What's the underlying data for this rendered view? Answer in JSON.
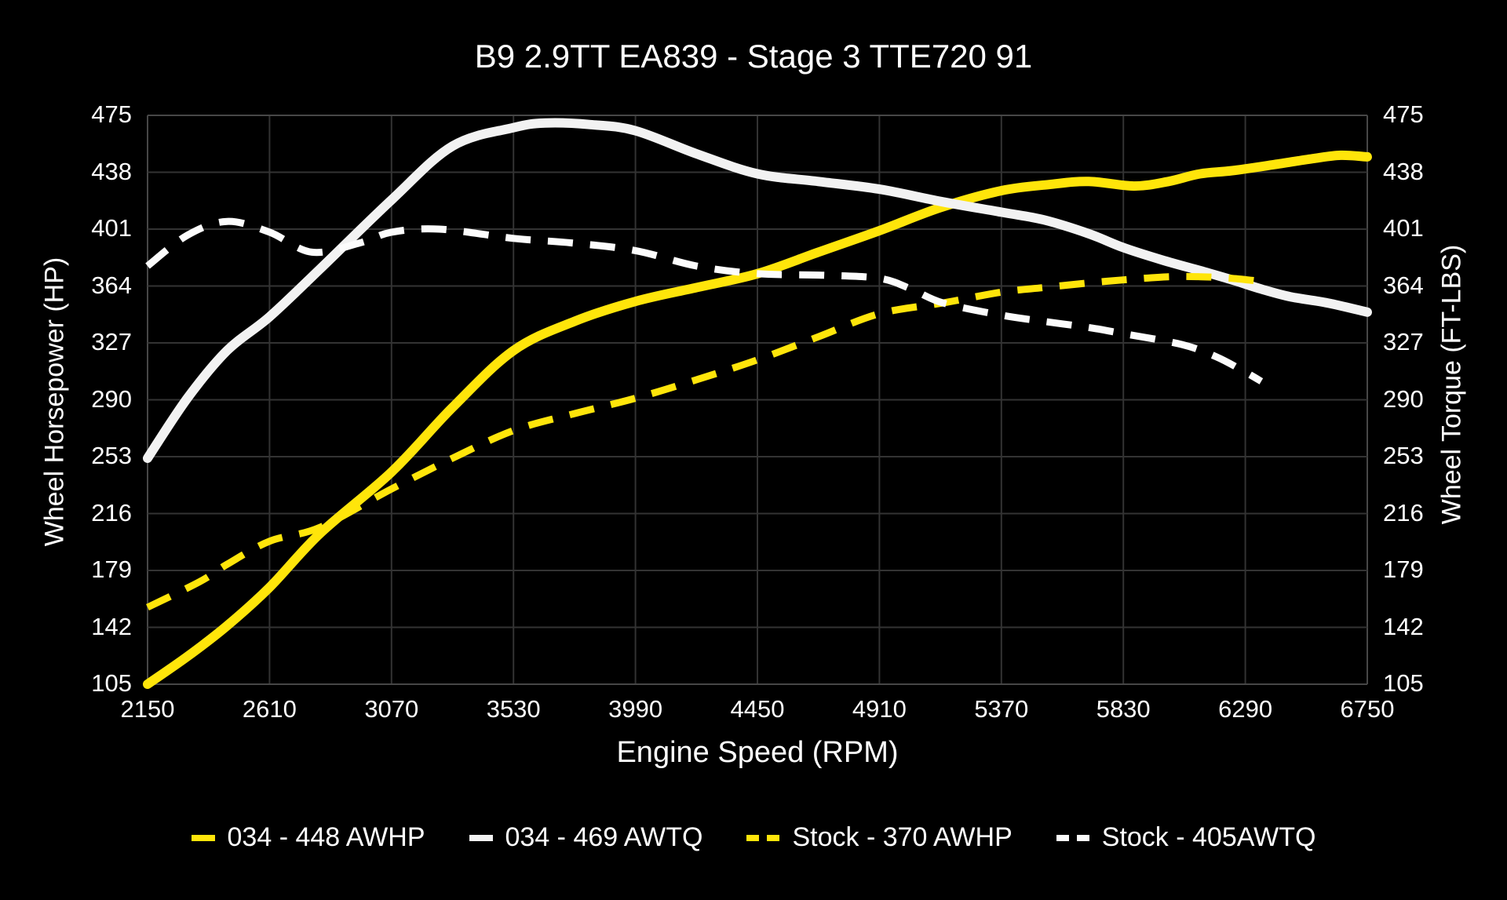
{
  "chart_data": {
    "type": "line",
    "title": "B9 2.9TT EA839 - Stage 3 TTE720 91",
    "xlabel": "Engine Speed (RPM)",
    "ylabel_left": "Wheel Horsepower (HP)",
    "ylabel_right": "Wheel Torque (FT-LBS)",
    "xlim": [
      2150,
      6750
    ],
    "ylim": [
      105,
      475
    ],
    "x_ticks": [
      2150,
      2610,
      3070,
      3530,
      3990,
      4450,
      4910,
      5370,
      5830,
      6290,
      6750
    ],
    "y_ticks": [
      105,
      142,
      179,
      216,
      253,
      290,
      327,
      364,
      401,
      438,
      475
    ],
    "grid": true,
    "legend_position": "bottom",
    "colors": {
      "background": "#000000",
      "gridline": "#333333",
      "plot_border": "#474747",
      "text": "#ffffff",
      "accent_yellow": "#ffe50a",
      "accent_white": "#f2f2f2"
    },
    "series": [
      {
        "name": "034 - 448 AWHP",
        "color": "#ffe50a",
        "style": "solid",
        "width": 12,
        "points": [
          [
            2150,
            105
          ],
          [
            2300,
            123
          ],
          [
            2450,
            143
          ],
          [
            2610,
            168
          ],
          [
            2800,
            203
          ],
          [
            3070,
            243
          ],
          [
            3300,
            285
          ],
          [
            3530,
            322
          ],
          [
            3760,
            341
          ],
          [
            3990,
            354
          ],
          [
            4220,
            363
          ],
          [
            4450,
            372
          ],
          [
            4680,
            386
          ],
          [
            4910,
            400
          ],
          [
            5140,
            415
          ],
          [
            5370,
            426
          ],
          [
            5550,
            430
          ],
          [
            5700,
            432
          ],
          [
            5870,
            429
          ],
          [
            6000,
            432
          ],
          [
            6120,
            437
          ],
          [
            6240,
            439
          ],
          [
            6400,
            443
          ],
          [
            6550,
            447
          ],
          [
            6650,
            449
          ],
          [
            6750,
            448
          ]
        ]
      },
      {
        "name": "034 - 469 AWTQ",
        "color": "#f2f2f2",
        "style": "solid",
        "width": 12,
        "points": [
          [
            2150,
            252
          ],
          [
            2300,
            291
          ],
          [
            2450,
            322
          ],
          [
            2610,
            344
          ],
          [
            2800,
            375
          ],
          [
            3070,
            420
          ],
          [
            3300,
            455
          ],
          [
            3530,
            467
          ],
          [
            3650,
            470
          ],
          [
            3820,
            469
          ],
          [
            3990,
            465
          ],
          [
            4220,
            450
          ],
          [
            4450,
            437
          ],
          [
            4680,
            432
          ],
          [
            4910,
            427
          ],
          [
            5140,
            419
          ],
          [
            5370,
            412
          ],
          [
            5530,
            407
          ],
          [
            5700,
            398
          ],
          [
            5830,
            389
          ],
          [
            5975,
            381
          ],
          [
            6120,
            374
          ],
          [
            6240,
            368
          ],
          [
            6350,
            362
          ],
          [
            6460,
            357
          ],
          [
            6600,
            353
          ],
          [
            6750,
            347
          ]
        ]
      },
      {
        "name": "Stock - 370 AWHP",
        "color": "#ffe50a",
        "style": "dashed",
        "width": 9,
        "points": [
          [
            2150,
            155
          ],
          [
            2350,
            172
          ],
          [
            2450,
            183
          ],
          [
            2610,
            198
          ],
          [
            2800,
            207
          ],
          [
            3070,
            232
          ],
          [
            3300,
            252
          ],
          [
            3530,
            270
          ],
          [
            3760,
            281
          ],
          [
            3990,
            291
          ],
          [
            4220,
            303
          ],
          [
            4450,
            316
          ],
          [
            4680,
            331
          ],
          [
            4910,
            346
          ],
          [
            5150,
            353
          ],
          [
            5370,
            360
          ],
          [
            5530,
            363
          ],
          [
            5700,
            366
          ],
          [
            5830,
            368
          ],
          [
            6000,
            370
          ],
          [
            6120,
            370
          ],
          [
            6240,
            369
          ],
          [
            6350,
            367
          ]
        ]
      },
      {
        "name": "Stock - 405AWTQ",
        "color": "#fcfcfc",
        "style": "dashed",
        "width": 9,
        "points": [
          [
            2150,
            377
          ],
          [
            2300,
            397
          ],
          [
            2450,
            406
          ],
          [
            2610,
            399
          ],
          [
            2770,
            386
          ],
          [
            2950,
            392
          ],
          [
            3070,
            399
          ],
          [
            3250,
            401
          ],
          [
            3530,
            395
          ],
          [
            3750,
            392
          ],
          [
            3990,
            387
          ],
          [
            4220,
            377
          ],
          [
            4450,
            372
          ],
          [
            4700,
            371
          ],
          [
            4910,
            369
          ],
          [
            5030,
            362
          ],
          [
            5150,
            353
          ],
          [
            5370,
            345
          ],
          [
            5530,
            341
          ],
          [
            5700,
            337
          ],
          [
            5830,
            333
          ],
          [
            6050,
            326
          ],
          [
            6180,
            318
          ],
          [
            6290,
            308
          ],
          [
            6350,
            302
          ]
        ]
      }
    ]
  }
}
